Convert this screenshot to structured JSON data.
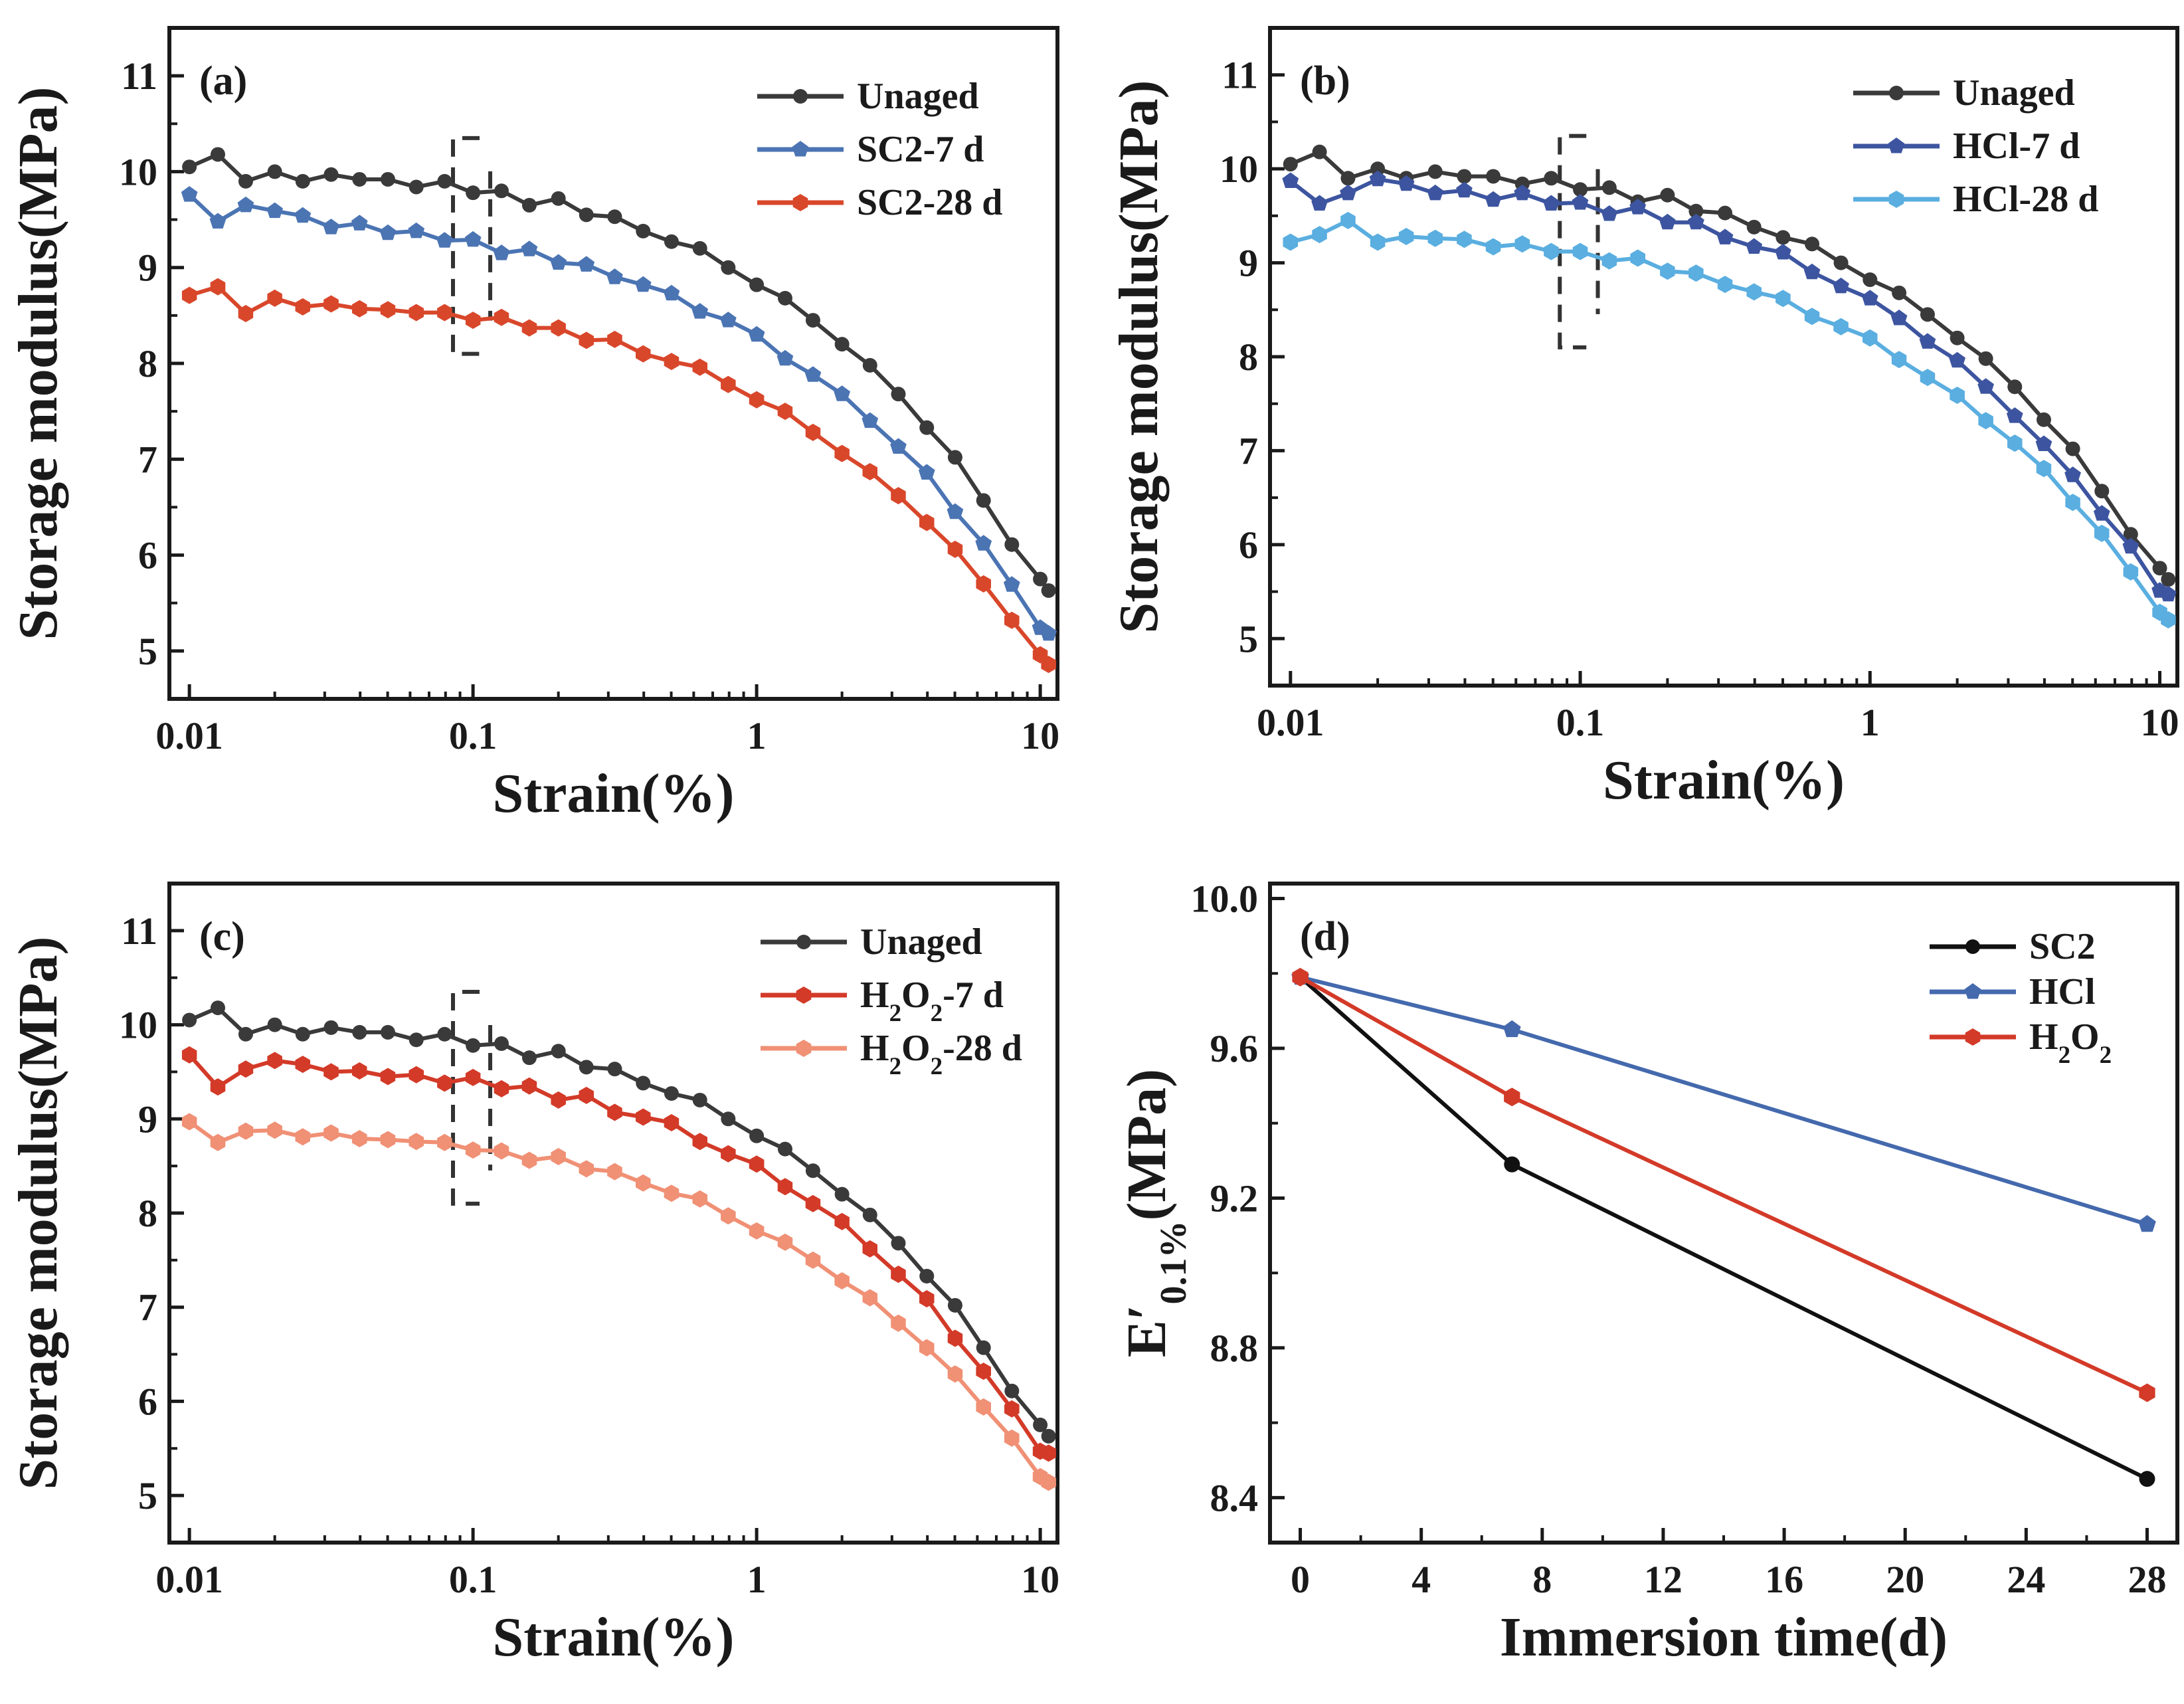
{
  "chart_data": [
    {
      "type": "line",
      "panel_label": "(a)",
      "xscale": "log",
      "xlabel": "Strain(%)",
      "ylabel": "Storage modulus(MPa)",
      "xlim": [
        0.0085,
        11.5
      ],
      "ylim": [
        4.5,
        11.5
      ],
      "xticks": [
        0.01,
        0.1,
        1,
        10
      ],
      "xtick_labels": [
        "0.01",
        "0.1",
        "1",
        "10"
      ],
      "yticks": [
        5,
        6,
        7,
        8,
        9,
        10,
        11
      ],
      "ytick_labels": [
        "5",
        "6",
        "7",
        "8",
        "9",
        "10",
        "11"
      ],
      "legend_position": "top-right",
      "dashed_bracket_x": [
        0.085,
        0.115
      ],
      "dashed_bracket_y": [
        8.1,
        10.35
      ],
      "x": [
        0.01,
        0.0126,
        0.0158,
        0.02,
        0.0251,
        0.0316,
        0.0398,
        0.0501,
        0.0631,
        0.0794,
        0.1,
        0.126,
        0.158,
        0.2,
        0.251,
        0.316,
        0.398,
        0.501,
        0.631,
        0.794,
        1,
        1.26,
        1.58,
        2,
        2.51,
        3.16,
        3.98,
        5.01,
        6.31,
        7.94,
        10,
        10.7
      ],
      "series": [
        {
          "name": "Unaged",
          "color": "#3a3a3a",
          "marker": "circle",
          "values": [
            10.05,
            10.18,
            9.9,
            10.0,
            9.9,
            9.97,
            9.92,
            9.92,
            9.84,
            9.9,
            9.78,
            9.8,
            9.65,
            9.72,
            9.55,
            9.53,
            9.38,
            9.27,
            9.2,
            9.0,
            8.82,
            8.68,
            8.45,
            8.2,
            7.98,
            7.68,
            7.33,
            7.02,
            6.57,
            6.11,
            5.75,
            5.63
          ]
        },
        {
          "name": "SC2-7 d",
          "color": "#4b74b3",
          "marker": "pentagon",
          "values": [
            9.76,
            9.48,
            9.65,
            9.59,
            9.54,
            9.42,
            9.46,
            9.36,
            9.38,
            9.28,
            9.29,
            9.15,
            9.19,
            9.05,
            9.03,
            8.9,
            8.82,
            8.73,
            8.54,
            8.45,
            8.3,
            8.05,
            7.88,
            7.68,
            7.4,
            7.13,
            6.86,
            6.45,
            6.12,
            5.69,
            5.24,
            5.18
          ]
        },
        {
          "name": "SC2-28 d",
          "color": "#d9472b",
          "marker": "hexagon",
          "values": [
            8.71,
            8.8,
            8.52,
            8.68,
            8.59,
            8.62,
            8.57,
            8.56,
            8.53,
            8.53,
            8.45,
            8.48,
            8.37,
            8.37,
            8.24,
            8.25,
            8.1,
            8.02,
            7.96,
            7.78,
            7.62,
            7.5,
            7.28,
            7.06,
            6.87,
            6.62,
            6.34,
            6.06,
            5.7,
            5.32,
            4.96,
            4.86
          ]
        }
      ]
    },
    {
      "type": "line",
      "panel_label": "(b)",
      "xscale": "log",
      "xlabel": "Strain(%)",
      "ylabel": "Storage modulus(MPa)",
      "xlim": [
        0.0085,
        11.5
      ],
      "ylim": [
        4.5,
        11.5
      ],
      "xticks": [
        0.01,
        0.1,
        1,
        10
      ],
      "xtick_labels": [
        "0.01",
        "0.1",
        "1",
        "10"
      ],
      "yticks": [
        5,
        6,
        7,
        8,
        9,
        10,
        11
      ],
      "ytick_labels": [
        "5",
        "6",
        "7",
        "8",
        "9",
        "10",
        "11"
      ],
      "legend_position": "top-right",
      "dashed_bracket_x": [
        0.085,
        0.115
      ],
      "dashed_bracket_y": [
        8.1,
        10.35
      ],
      "x": [
        0.01,
        0.0126,
        0.0158,
        0.02,
        0.0251,
        0.0316,
        0.0398,
        0.0501,
        0.0631,
        0.0794,
        0.1,
        0.126,
        0.158,
        0.2,
        0.251,
        0.316,
        0.398,
        0.501,
        0.631,
        0.794,
        1,
        1.26,
        1.58,
        2,
        2.51,
        3.16,
        3.98,
        5.01,
        6.31,
        7.94,
        10,
        10.7
      ],
      "series": [
        {
          "name": "Unaged",
          "color": "#3a3a3a",
          "marker": "circle",
          "values": [
            10.05,
            10.18,
            9.9,
            10.0,
            9.9,
            9.97,
            9.92,
            9.92,
            9.84,
            9.9,
            9.78,
            9.8,
            9.65,
            9.72,
            9.55,
            9.53,
            9.38,
            9.27,
            9.2,
            9.0,
            8.82,
            8.68,
            8.45,
            8.2,
            7.98,
            7.68,
            7.33,
            7.02,
            6.57,
            6.11,
            5.75,
            5.63
          ]
        },
        {
          "name": "HCl-7 d",
          "color": "#3d55a0",
          "marker": "pentagon",
          "values": [
            9.87,
            9.63,
            9.74,
            9.89,
            9.84,
            9.74,
            9.77,
            9.67,
            9.74,
            9.63,
            9.64,
            9.52,
            9.59,
            9.43,
            9.43,
            9.27,
            9.17,
            9.11,
            8.9,
            8.75,
            8.62,
            8.41,
            8.16,
            7.96,
            7.68,
            7.37,
            7.07,
            6.74,
            6.33,
            5.98,
            5.51,
            5.47
          ]
        },
        {
          "name": "HCl-28 d",
          "color": "#5aaee0",
          "marker": "hexagon",
          "values": [
            9.22,
            9.3,
            9.45,
            9.22,
            9.28,
            9.26,
            9.25,
            9.17,
            9.2,
            9.12,
            9.12,
            9.02,
            9.05,
            8.91,
            8.89,
            8.77,
            8.69,
            8.62,
            8.43,
            8.32,
            8.2,
            7.97,
            7.78,
            7.59,
            7.32,
            7.08,
            6.81,
            6.45,
            6.12,
            5.71,
            5.28,
            5.2
          ]
        }
      ]
    },
    {
      "type": "line",
      "panel_label": "(c)",
      "xscale": "log",
      "xlabel": "Strain(%)",
      "ylabel": "Storage modulus(MPa)",
      "xlim": [
        0.0085,
        11.5
      ],
      "ylim": [
        4.5,
        11.5
      ],
      "xticks": [
        0.01,
        0.1,
        1,
        10
      ],
      "xtick_labels": [
        "0.01",
        "0.1",
        "1",
        "10"
      ],
      "yticks": [
        5,
        6,
        7,
        8,
        9,
        10,
        11
      ],
      "ytick_labels": [
        "5",
        "6",
        "7",
        "8",
        "9",
        "10",
        "11"
      ],
      "legend_position": "top-right",
      "dashed_bracket_x": [
        0.085,
        0.115
      ],
      "dashed_bracket_y": [
        8.1,
        10.35
      ],
      "x": [
        0.01,
        0.0126,
        0.0158,
        0.02,
        0.0251,
        0.0316,
        0.0398,
        0.0501,
        0.0631,
        0.0794,
        0.1,
        0.126,
        0.158,
        0.2,
        0.251,
        0.316,
        0.398,
        0.501,
        0.631,
        0.794,
        1,
        1.26,
        1.58,
        2,
        2.51,
        3.16,
        3.98,
        5.01,
        6.31,
        7.94,
        10,
        10.7
      ],
      "series": [
        {
          "name": "Unaged",
          "color": "#3a3a3a",
          "marker": "circle",
          "values": [
            10.05,
            10.18,
            9.9,
            10.0,
            9.9,
            9.97,
            9.92,
            9.92,
            9.84,
            9.9,
            9.78,
            9.8,
            9.65,
            9.72,
            9.55,
            9.53,
            9.38,
            9.27,
            9.2,
            9.0,
            8.82,
            8.68,
            8.45,
            8.2,
            7.98,
            7.68,
            7.33,
            7.02,
            6.57,
            6.11,
            5.75,
            5.63
          ]
        },
        {
          "name": "H2O2-7 d",
          "label_main": "H",
          "label_sub": "2",
          "label_mid": "O",
          "label_sub2": "2",
          "label_tail": "-7 d",
          "color": "#d33a28",
          "marker": "hexagon",
          "values": [
            9.68,
            9.34,
            9.53,
            9.62,
            9.58,
            9.5,
            9.51,
            9.45,
            9.47,
            9.38,
            9.44,
            9.32,
            9.35,
            9.2,
            9.25,
            9.07,
            9.02,
            8.96,
            8.76,
            8.63,
            8.52,
            8.28,
            8.1,
            7.91,
            7.62,
            7.35,
            7.09,
            6.67,
            6.32,
            5.92,
            5.47,
            5.45
          ]
        },
        {
          "name": "H2O2-28 d",
          "label_main": "H",
          "label_sub": "2",
          "label_mid": "O",
          "label_sub2": "2",
          "label_tail": "-28 d",
          "color": "#f09075",
          "marker": "hexagon",
          "values": [
            8.97,
            8.75,
            8.87,
            8.88,
            8.81,
            8.85,
            8.79,
            8.78,
            8.76,
            8.75,
            8.67,
            8.66,
            8.56,
            8.6,
            8.47,
            8.44,
            8.32,
            8.21,
            8.15,
            7.97,
            7.81,
            7.69,
            7.5,
            7.28,
            7.1,
            6.83,
            6.57,
            6.29,
            5.94,
            5.61,
            5.2,
            5.14
          ]
        }
      ]
    },
    {
      "type": "line",
      "panel_label": "(d)",
      "xscale": "linear",
      "xlabel": "Immersion time(d)",
      "ylabel": "E′0.1%(MPa)",
      "ylabel_main": "E′",
      "ylabel_sub": "0.1%",
      "ylabel_tail": "(MPa)",
      "xlim": [
        -1,
        29
      ],
      "ylim": [
        8.28,
        10.04
      ],
      "xticks": [
        0,
        4,
        8,
        12,
        16,
        20,
        24,
        28
      ],
      "xtick_labels": [
        "0",
        "4",
        "8",
        "12",
        "16",
        "20",
        "24",
        "28"
      ],
      "yticks": [
        8.4,
        8.8,
        9.2,
        9.6,
        10.0
      ],
      "ytick_labels": [
        "8.4",
        "8.8",
        "9.2",
        "9.6",
        "10.0"
      ],
      "legend_position": "top-right",
      "x": [
        0,
        7,
        28
      ],
      "series": [
        {
          "name": "SC2",
          "color": "#111111",
          "marker": "circle",
          "values": [
            9.79,
            9.29,
            8.45
          ]
        },
        {
          "name": "HCl",
          "color": "#4469ad",
          "marker": "pentagon",
          "values": [
            9.79,
            9.65,
            9.13
          ]
        },
        {
          "name": "H2O2",
          "label_main": "H",
          "label_sub": "2",
          "label_mid": "O",
          "label_sub2": "2",
          "label_tail": "",
          "color": "#d33a28",
          "marker": "hexagon",
          "values": [
            9.79,
            9.47,
            8.68
          ]
        }
      ]
    }
  ]
}
